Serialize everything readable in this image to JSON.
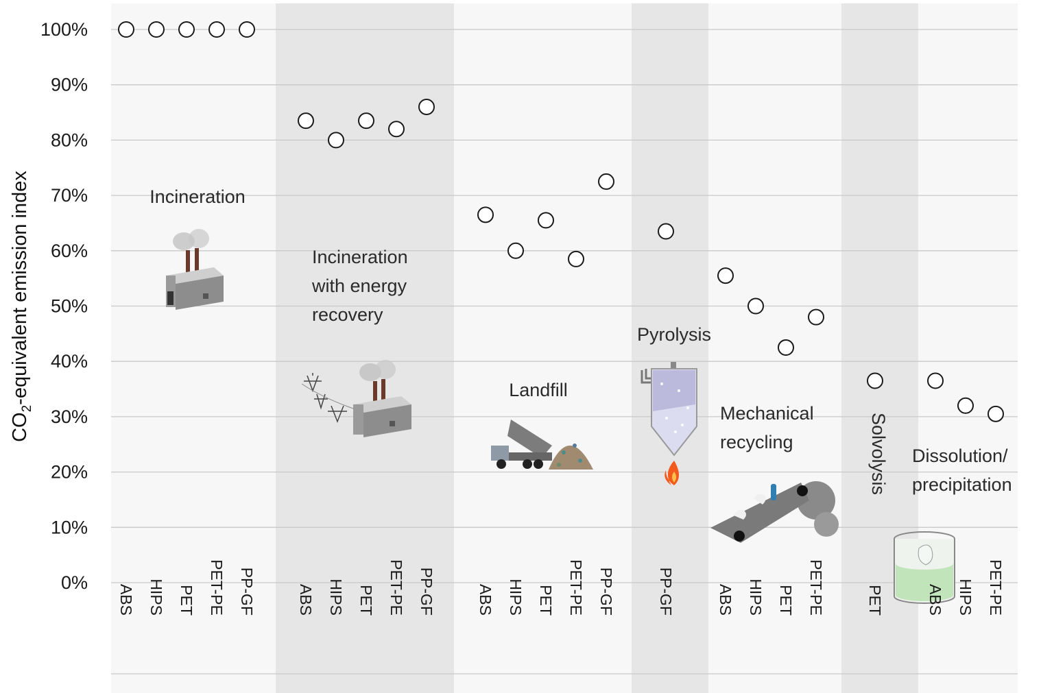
{
  "chart_data": {
    "type": "scatter",
    "ylabel_main": "CO",
    "ylabel_sub": "2",
    "ylabel_rest": "-equivalent emission index",
    "ylim": [
      0,
      100
    ],
    "yticks": [
      "100%",
      "90%",
      "80%",
      "70%",
      "60%",
      "50%",
      "40%",
      "30%",
      "20%",
      "10%",
      "0%"
    ],
    "grid": true,
    "groups": [
      {
        "name": "Incineration",
        "shaded": false,
        "categories": [
          "ABS",
          "HIPS",
          "PET",
          "PET-PE",
          "PP-GF"
        ],
        "values": [
          100,
          100,
          100,
          100,
          100
        ]
      },
      {
        "name": "Incineration with energy recovery",
        "shaded": true,
        "categories": [
          "ABS",
          "HIPS",
          "PET",
          "PET-PE",
          "PP-GF"
        ],
        "values": [
          83.5,
          80,
          83.5,
          82,
          86
        ]
      },
      {
        "name": "Landfill",
        "shaded": false,
        "categories": [
          "ABS",
          "HIPS",
          "PET",
          "PET-PE",
          "PP-GF"
        ],
        "values": [
          66.5,
          60,
          65.5,
          58.5,
          72.5
        ]
      },
      {
        "name": "Pyrolysis",
        "shaded": true,
        "categories": [
          "PP-GF"
        ],
        "values": [
          63.5
        ]
      },
      {
        "name": "Mechanical recycling",
        "shaded": false,
        "categories": [
          "ABS",
          "HIPS",
          "PET",
          "PET-PE"
        ],
        "values": [
          55.5,
          50,
          42.5,
          48
        ]
      },
      {
        "name": "Solvolysis",
        "shaded": true,
        "categories": [
          "PET"
        ],
        "values": [
          36.5
        ]
      },
      {
        "name": "Dissolution/ precipitation",
        "shaded": false,
        "categories": [
          "ABS",
          "HIPS",
          "PET-PE"
        ],
        "values": [
          36.5,
          32,
          30.5
        ]
      }
    ],
    "group_labels": {
      "incineration": "Incineration",
      "energy_1": "Incineration",
      "energy_2": "with energy",
      "energy_3": "recovery",
      "landfill": "Landfill",
      "pyrolysis": "Pyrolysis",
      "mech_1": "Mechanical",
      "mech_2": "recycling",
      "solvolysis": "Solvolysis",
      "diss_1": "Dissolution/",
      "diss_2": "precipitation"
    },
    "colors": {
      "shade": "#e6e6e6",
      "light": "#f7f7f7",
      "grid": "#c9c9c9",
      "marker": "#1a1a1a"
    }
  }
}
